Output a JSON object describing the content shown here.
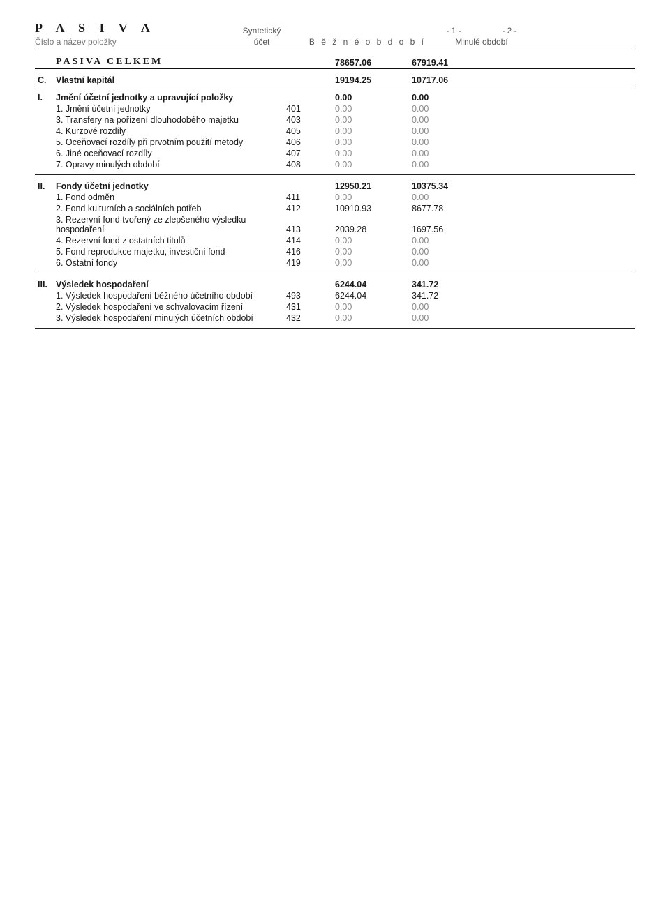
{
  "doc": {
    "title": "P A S I V A",
    "item_header": "Číslo a název položky",
    "acct_header_line1": "Syntetický",
    "acct_header_line2": "účet",
    "period_current_num": "- 1 -",
    "period_prior_num": "- 2 -",
    "period_current_label": "B ě ž n é    o b d o b í",
    "period_prior_label": "Minulé období"
  },
  "totals": {
    "label": "PASIVA CELKEM",
    "v1": "78657.06",
    "v2": "67919.41"
  },
  "section_c": {
    "marker": "C.",
    "label": "Vlastní kapitál",
    "v1": "19194.25",
    "v2": "10717.06"
  },
  "group_i": {
    "marker": "I.",
    "label": "Jmění účetní jednotky a upravující položky",
    "v1": "0.00",
    "v2": "0.00",
    "rows": [
      {
        "name": "1. Jmění účetní jednotky",
        "acct": "401",
        "v1": "0.00",
        "v2": "0.00"
      },
      {
        "name": "3. Transfery na pořízení dlouhodobého majetku",
        "acct": "403",
        "v1": "0.00",
        "v2": "0.00"
      },
      {
        "name": "4. Kurzové rozdíly",
        "acct": "405",
        "v1": "0.00",
        "v2": "0.00"
      },
      {
        "name": "5. Oceňovací rozdíly při prvotním použití metody",
        "acct": "406",
        "v1": "0.00",
        "v2": "0.00"
      },
      {
        "name": "6. Jiné oceňovací rozdíly",
        "acct": "407",
        "v1": "0.00",
        "v2": "0.00"
      },
      {
        "name": "7. Opravy minulých období",
        "acct": "408",
        "v1": "0.00",
        "v2": "0.00"
      }
    ]
  },
  "group_ii": {
    "marker": "II.",
    "label": "Fondy účetní jednotky",
    "v1": "12950.21",
    "v2": "10375.34",
    "rows": [
      {
        "name": "1. Fond odměn",
        "acct": "411",
        "v1": "0.00",
        "v2": "0.00"
      },
      {
        "name": "2. Fond kulturních a sociálních potřeb",
        "acct": "412",
        "v1": "10910.93",
        "v2": "8677.78"
      },
      {
        "name": "3. Rezervní fond tvořený ze zlepšeného výsledku hospodaření",
        "acct": "413",
        "v1": "2039.28",
        "v2": "1697.56"
      },
      {
        "name": "4. Rezervní fond z ostatních titulů",
        "acct": "414",
        "v1": "0.00",
        "v2": "0.00"
      },
      {
        "name": "5. Fond reprodukce majetku, investiční fond",
        "acct": "416",
        "v1": "0.00",
        "v2": "0.00"
      },
      {
        "name": "6. Ostatní fondy",
        "acct": "419",
        "v1": "0.00",
        "v2": "0.00"
      }
    ]
  },
  "group_iii": {
    "marker": "III.",
    "label": "Výsledek hospodaření",
    "v1": "6244.04",
    "v2": "341.72",
    "rows": [
      {
        "name": "1. Výsledek hospodaření běžného účetního období",
        "acct": "493",
        "v1": "6244.04",
        "v2": "341.72"
      },
      {
        "name": "2. Výsledek hospodaření ve schvalovacím řízení",
        "acct": "431",
        "v1": "0.00",
        "v2": "0.00"
      },
      {
        "name": "3. Výsledek hospodaření minulých účetních období",
        "acct": "432",
        "v1": "0.00",
        "v2": "0.00"
      }
    ]
  }
}
